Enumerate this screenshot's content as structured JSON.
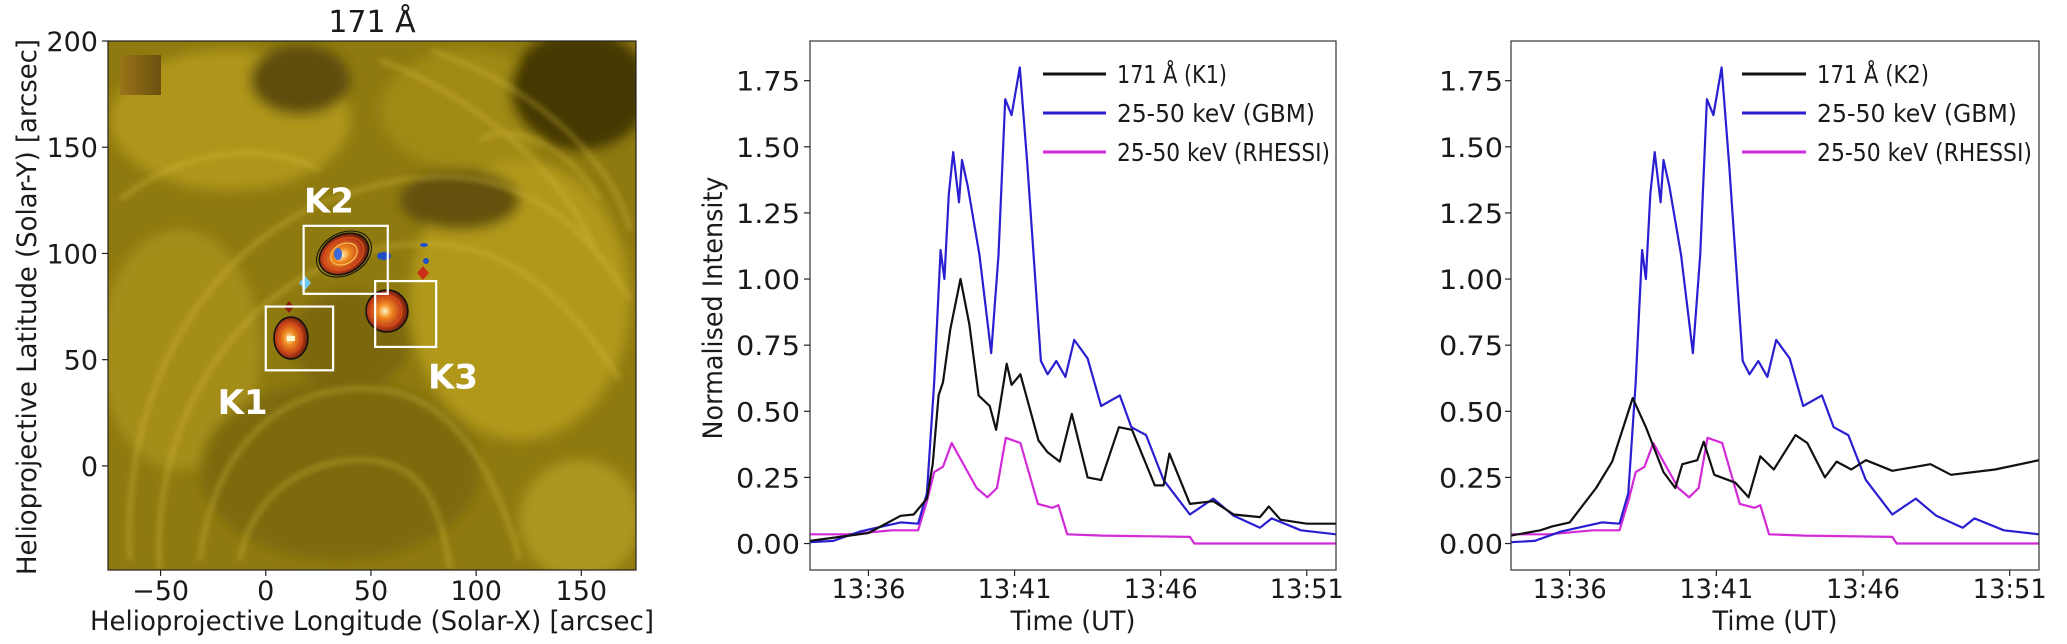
{
  "colors": {
    "k_series": "#111111",
    "gbm": "#2a1fd0",
    "rhessi": "#d22ad8",
    "solar_base": "#9a8312",
    "box": "#ffffff"
  },
  "chart_data": [
    {
      "type": "image",
      "title": "171 Å",
      "xlabel": "Helioprojective Longitude (Solar-X) [arcsec]",
      "ylabel": "Helioprojective Latitude (Solar-Y) [arcsec]",
      "xlim": [
        -75,
        176
      ],
      "ylim": [
        -49,
        200
      ],
      "xticks": [
        {
          "value": -50,
          "label": "−50"
        },
        {
          "value": 0,
          "label": "0"
        },
        {
          "value": 50,
          "label": "50"
        },
        {
          "value": 100,
          "label": "100"
        },
        {
          "value": 150,
          "label": "150"
        }
      ],
      "yticks": [
        {
          "value": 0,
          "label": "0"
        },
        {
          "value": 50,
          "label": "50"
        },
        {
          "value": 100,
          "label": "100"
        },
        {
          "value": 150,
          "label": "150"
        },
        {
          "value": 200,
          "label": "200"
        }
      ],
      "regions": [
        {
          "label": "K1",
          "x": [
            0,
            32
          ],
          "y": [
            45,
            75
          ]
        },
        {
          "label": "K2",
          "x": [
            18,
            58
          ],
          "y": [
            81,
            113
          ]
        },
        {
          "label": "K3",
          "x": [
            52,
            81
          ],
          "y": [
            56,
            87
          ]
        }
      ]
    },
    {
      "type": "line",
      "title": "",
      "xlabel": "Time (UT)",
      "ylabel": "Normalised Intensity",
      "x_units": "minutes after 13:00 UT",
      "xlim": [
        34,
        52
      ],
      "ylim": [
        -0.1,
        1.9
      ],
      "grid": false,
      "legend_position": "top-right",
      "xticks": [
        {
          "value": 36,
          "label": "13:36"
        },
        {
          "value": 41,
          "label": "13:41"
        },
        {
          "value": 46,
          "label": "13:46"
        },
        {
          "value": 51,
          "label": "13:51"
        }
      ],
      "yticks": [
        {
          "value": 0,
          "label": "0.00"
        },
        {
          "value": 0.25,
          "label": "0.25"
        },
        {
          "value": 0.5,
          "label": "0.50"
        },
        {
          "value": 0.75,
          "label": "0.75"
        },
        {
          "value": 1.0,
          "label": "1.00"
        },
        {
          "value": 1.25,
          "label": "1.25"
        },
        {
          "value": 1.5,
          "label": "1.50"
        },
        {
          "value": 1.75,
          "label": "1.75"
        }
      ],
      "series": [
        {
          "name": "171 Å (K1)",
          "color": "#111111",
          "points": [
            [
              34,
              0.01
            ],
            [
              36,
              0.04
            ],
            [
              37.1,
              0.105
            ],
            [
              37.55,
              0.11
            ],
            [
              38,
              0.17
            ],
            [
              38.2,
              0.3
            ],
            [
              38.4,
              0.56
            ],
            [
              38.55,
              0.61
            ],
            [
              38.8,
              0.81
            ],
            [
              39.15,
              1.0
            ],
            [
              39.45,
              0.83
            ],
            [
              39.77,
              0.56
            ],
            [
              40.15,
              0.52
            ],
            [
              40.37,
              0.43
            ],
            [
              40.73,
              0.68
            ],
            [
              40.9,
              0.6
            ],
            [
              41.2,
              0.64
            ],
            [
              41.82,
              0.39
            ],
            [
              42.13,
              0.345
            ],
            [
              42.55,
              0.31
            ],
            [
              42.96,
              0.49
            ],
            [
              43.5,
              0.25
            ],
            [
              43.96,
              0.24
            ],
            [
              44.57,
              0.44
            ],
            [
              45.02,
              0.43
            ],
            [
              45.8,
              0.22
            ],
            [
              46.1,
              0.22
            ],
            [
              46.3,
              0.34
            ],
            [
              47,
              0.15
            ],
            [
              47.8,
              0.16
            ],
            [
              48.5,
              0.11
            ],
            [
              49.4,
              0.1
            ],
            [
              49.7,
              0.14
            ],
            [
              50.1,
              0.09
            ],
            [
              51,
              0.075
            ],
            [
              52,
              0.075
            ]
          ]
        },
        {
          "name": "25-50 keV (GBM)",
          "color": "#2a1fd0",
          "points": [
            [
              34,
              0.005
            ],
            [
              34.8,
              0.01
            ],
            [
              35.7,
              0.045
            ],
            [
              37.1,
              0.08
            ],
            [
              37.7,
              0.075
            ],
            [
              38,
              0.19
            ],
            [
              38.25,
              0.61
            ],
            [
              38.47,
              1.11
            ],
            [
              38.6,
              1.0
            ],
            [
              38.75,
              1.32
            ],
            [
              38.9,
              1.48
            ],
            [
              39.1,
              1.29
            ],
            [
              39.2,
              1.45
            ],
            [
              39.4,
              1.35
            ],
            [
              39.8,
              1.09
            ],
            [
              40.2,
              0.72
            ],
            [
              40.45,
              1.09
            ],
            [
              40.68,
              1.68
            ],
            [
              40.9,
              1.62
            ],
            [
              41.18,
              1.8
            ],
            [
              41.44,
              1.43
            ],
            [
              41.9,
              0.69
            ],
            [
              42.13,
              0.64
            ],
            [
              42.43,
              0.69
            ],
            [
              42.74,
              0.63
            ],
            [
              43.04,
              0.77
            ],
            [
              43.5,
              0.7
            ],
            [
              43.96,
              0.52
            ],
            [
              44.6,
              0.56
            ],
            [
              45,
              0.44
            ],
            [
              45.5,
              0.41
            ],
            [
              46.1,
              0.24
            ],
            [
              47,
              0.11
            ],
            [
              47.8,
              0.17
            ],
            [
              48.5,
              0.105
            ],
            [
              49.4,
              0.06
            ],
            [
              49.8,
              0.095
            ],
            [
              50.8,
              0.05
            ],
            [
              52,
              0.035
            ]
          ]
        },
        {
          "name": "25-50 keV (RHESSI)",
          "color": "#d22ad8",
          "points": [
            [
              34,
              0.035
            ],
            [
              35.3,
              0.035
            ],
            [
              36.8,
              0.05
            ],
            [
              37.7,
              0.05
            ],
            [
              38,
              0.16
            ],
            [
              38.25,
              0.27
            ],
            [
              38.55,
              0.29
            ],
            [
              38.85,
              0.38
            ],
            [
              39.2,
              0.31
            ],
            [
              39.7,
              0.21
            ],
            [
              40.07,
              0.175
            ],
            [
              40.4,
              0.21
            ],
            [
              40.7,
              0.4
            ],
            [
              41.2,
              0.38
            ],
            [
              41.8,
              0.15
            ],
            [
              42.3,
              0.135
            ],
            [
              42.5,
              0.145
            ],
            [
              42.8,
              0.035
            ],
            [
              44,
              0.03
            ],
            [
              47,
              0.025
            ],
            [
              47.15,
              0.0
            ],
            [
              52,
              0.0
            ]
          ]
        }
      ]
    },
    {
      "type": "line",
      "title": "",
      "xlabel": "Time (UT)",
      "ylabel": "",
      "x_units": "minutes after 13:00 UT",
      "xlim": [
        34,
        52
      ],
      "ylim": [
        -0.1,
        1.9
      ],
      "grid": false,
      "legend_position": "top-right",
      "xticks": [
        {
          "value": 36,
          "label": "13:36"
        },
        {
          "value": 41,
          "label": "13:41"
        },
        {
          "value": 46,
          "label": "13:46"
        },
        {
          "value": 51,
          "label": "13:51"
        }
      ],
      "yticks": [
        {
          "value": 0,
          "label": "0.00"
        },
        {
          "value": 0.25,
          "label": "0.25"
        },
        {
          "value": 0.5,
          "label": "0.50"
        },
        {
          "value": 0.75,
          "label": "0.75"
        },
        {
          "value": 1.0,
          "label": "1.00"
        },
        {
          "value": 1.25,
          "label": "1.25"
        },
        {
          "value": 1.5,
          "label": "1.50"
        },
        {
          "value": 1.75,
          "label": "1.75"
        }
      ],
      "series": [
        {
          "name": "171 Å (K2)",
          "color": "#111111",
          "points": [
            [
              34,
              0.03
            ],
            [
              35,
              0.05
            ],
            [
              35.4,
              0.065
            ],
            [
              36,
              0.08
            ],
            [
              36.9,
              0.21
            ],
            [
              37.45,
              0.31
            ],
            [
              38.15,
              0.55
            ],
            [
              38.6,
              0.44
            ],
            [
              39.2,
              0.27
            ],
            [
              39.6,
              0.21
            ],
            [
              39.84,
              0.3
            ],
            [
              40.35,
              0.315
            ],
            [
              40.57,
              0.385
            ],
            [
              40.93,
              0.26
            ],
            [
              41.65,
              0.23
            ],
            [
              42.1,
              0.175
            ],
            [
              42.5,
              0.33
            ],
            [
              42.96,
              0.28
            ],
            [
              43.7,
              0.41
            ],
            [
              44.1,
              0.38
            ],
            [
              44.7,
              0.25
            ],
            [
              45.1,
              0.31
            ],
            [
              45.6,
              0.28
            ],
            [
              46.1,
              0.315
            ],
            [
              47,
              0.275
            ],
            [
              48.3,
              0.3
            ],
            [
              49,
              0.26
            ],
            [
              50.5,
              0.28
            ],
            [
              52,
              0.315
            ]
          ]
        },
        {
          "name": "25-50 keV (GBM)",
          "color": "#2a1fd0",
          "points": [
            [
              34,
              0.005
            ],
            [
              34.8,
              0.01
            ],
            [
              35.7,
              0.045
            ],
            [
              37.1,
              0.08
            ],
            [
              37.7,
              0.075
            ],
            [
              38,
              0.19
            ],
            [
              38.25,
              0.61
            ],
            [
              38.47,
              1.11
            ],
            [
              38.6,
              1.0
            ],
            [
              38.75,
              1.32
            ],
            [
              38.9,
              1.48
            ],
            [
              39.1,
              1.29
            ],
            [
              39.2,
              1.45
            ],
            [
              39.4,
              1.35
            ],
            [
              39.8,
              1.09
            ],
            [
              40.2,
              0.72
            ],
            [
              40.45,
              1.09
            ],
            [
              40.68,
              1.68
            ],
            [
              40.9,
              1.62
            ],
            [
              41.18,
              1.8
            ],
            [
              41.44,
              1.43
            ],
            [
              41.9,
              0.69
            ],
            [
              42.13,
              0.64
            ],
            [
              42.43,
              0.69
            ],
            [
              42.74,
              0.63
            ],
            [
              43.04,
              0.77
            ],
            [
              43.5,
              0.7
            ],
            [
              43.96,
              0.52
            ],
            [
              44.6,
              0.56
            ],
            [
              45,
              0.44
            ],
            [
              45.5,
              0.41
            ],
            [
              46.1,
              0.24
            ],
            [
              47,
              0.11
            ],
            [
              47.8,
              0.17
            ],
            [
              48.5,
              0.105
            ],
            [
              49.4,
              0.06
            ],
            [
              49.8,
              0.095
            ],
            [
              50.8,
              0.05
            ],
            [
              52,
              0.035
            ]
          ]
        },
        {
          "name": "25-50 keV (RHESSI)",
          "color": "#d22ad8",
          "points": [
            [
              34,
              0.035
            ],
            [
              35.3,
              0.035
            ],
            [
              36.8,
              0.05
            ],
            [
              37.7,
              0.05
            ],
            [
              38,
              0.16
            ],
            [
              38.25,
              0.27
            ],
            [
              38.55,
              0.29
            ],
            [
              38.85,
              0.38
            ],
            [
              39.2,
              0.31
            ],
            [
              39.7,
              0.21
            ],
            [
              40.07,
              0.175
            ],
            [
              40.4,
              0.21
            ],
            [
              40.7,
              0.4
            ],
            [
              41.2,
              0.38
            ],
            [
              41.8,
              0.15
            ],
            [
              42.3,
              0.135
            ],
            [
              42.5,
              0.145
            ],
            [
              42.8,
              0.035
            ],
            [
              44,
              0.03
            ],
            [
              47,
              0.025
            ],
            [
              47.15,
              0.0
            ],
            [
              52,
              0.0
            ]
          ]
        }
      ]
    }
  ]
}
